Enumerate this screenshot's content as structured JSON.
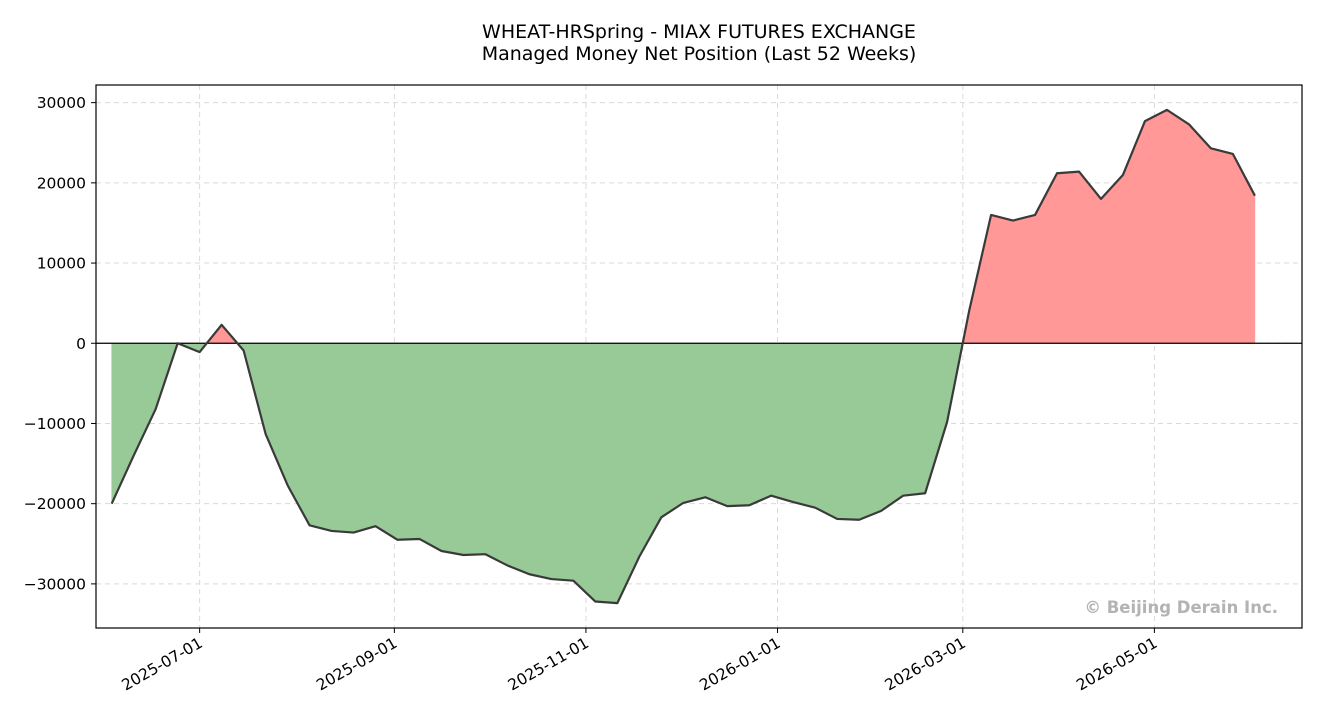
{
  "chart_data": {
    "type": "area",
    "title": "WHEAT-HRSpring - MIAX FUTURES EXCHANGE",
    "subtitle": "Managed Money Net Position (Last 52 Weeks)",
    "xlabel": "",
    "ylabel": "",
    "xlim": [
      "2025-05-29",
      "2026-06-17"
    ],
    "ylim": [
      -35500,
      32200
    ],
    "x_ticks": [
      "2025-07-01",
      "2025-09-01",
      "2025-11-01",
      "2026-01-01",
      "2026-03-01",
      "2026-05-01"
    ],
    "y_ticks": [
      -30000,
      -20000,
      -10000,
      0,
      10000,
      20000,
      30000
    ],
    "grid": true,
    "positive_color": "#ff9896",
    "negative_color": "#98ca98",
    "line_color": "#3a3a3a",
    "watermark": "© Beijing Derain Inc.",
    "series": [
      {
        "x": [
          "2025-06-03",
          "2025-06-10",
          "2025-06-17",
          "2025-06-24",
          "2025-07-01",
          "2025-07-08",
          "2025-07-15",
          "2025-07-22",
          "2025-07-29",
          "2025-08-05",
          "2025-08-12",
          "2025-08-19",
          "2025-08-26",
          "2025-09-02",
          "2025-09-09",
          "2025-09-16",
          "2025-09-23",
          "2025-09-30",
          "2025-10-07",
          "2025-10-14",
          "2025-10-21",
          "2025-10-28",
          "2025-11-04",
          "2025-11-11",
          "2025-11-18",
          "2025-11-25",
          "2025-12-02",
          "2025-12-09",
          "2025-12-16",
          "2025-12-23",
          "2025-12-30",
          "2026-01-06",
          "2026-01-13",
          "2026-01-20",
          "2026-01-27",
          "2026-02-03",
          "2026-02-10",
          "2026-02-17",
          "2026-02-24",
          "2026-03-03",
          "2026-03-10",
          "2026-03-17",
          "2026-03-24",
          "2026-03-31",
          "2026-04-07",
          "2026-04-14",
          "2026-04-21",
          "2026-04-28",
          "2026-05-05",
          "2026-05-12",
          "2026-05-19",
          "2026-05-26",
          "2026-06-02"
        ],
        "values": [
          -20000,
          -14000,
          -8200,
          0,
          -1100,
          2300,
          -900,
          -11300,
          -17700,
          -22700,
          -23400,
          -23600,
          -22800,
          -24500,
          -24400,
          -25900,
          -26400,
          -26300,
          -27700,
          -28800,
          -29400,
          -29600,
          -32200,
          -32400,
          -26600,
          -21700,
          -19900,
          -19200,
          -20300,
          -20200,
          -19000,
          -19800,
          -20500,
          -21900,
          -22000,
          -20900,
          -19000,
          -18700,
          -9800,
          4000,
          16000,
          15300,
          16000,
          21200,
          21400,
          18000,
          21000,
          27700,
          29100,
          27300,
          24300,
          23600,
          18400
        ]
      }
    ]
  }
}
